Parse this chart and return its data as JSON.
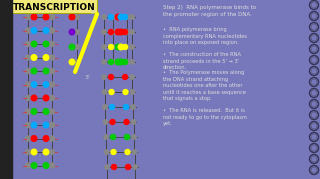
{
  "bg_color": "#7777bb",
  "dark_left": "#222222",
  "title_box_color": "#f0e878",
  "title_text": "TRANSCRIPTION",
  "title_text_color": "#000000",
  "text_color": "#dddddd",
  "step2_title": "Step 2)  RNA polymerase binds to\nthe promoter region of the DNA.",
  "bullet1": "  RNA polymerase bring\ncomplementary RNA nucleotides\ninto place on exposed region.",
  "bullet2": "  The construction of the RNA\nstrand proceeds in the 5’ → 3’\ndirection.",
  "bullet3": "  The Polymerase moves along\nthe DNA strand attaching\nnucleotides one after the other\nuntil it reaches a base sequence\nthat signals a stop.",
  "bullet4": "  The RNA is released.  But it is\nnot ready to go to the cytoplasm\nyet.",
  "left_dna_colors": [
    [
      "#ff0000",
      "#ff0000"
    ],
    [
      "#00aaff",
      "#00aaff"
    ],
    [
      "#00cc00",
      "#00cc00"
    ],
    [
      "#ffff00",
      "#ffff00"
    ],
    [
      "#00cc00",
      "#00cc00"
    ],
    [
      "#00aaff",
      "#00aaff"
    ],
    [
      "#ff0000",
      "#ff0000"
    ],
    [
      "#00cc00",
      "#00cc00"
    ],
    [
      "#00aaff",
      "#00aaff"
    ],
    [
      "#ff0000",
      "#ff0000"
    ],
    [
      "#ffff00",
      "#ffff00"
    ],
    [
      "#00cc00",
      "#00cc00"
    ]
  ],
  "open_left_colors": [
    "#ff0000",
    "#7700cc",
    "#00cc00",
    "#ffff00"
  ],
  "open_right_colors": [
    "#ff0000",
    "#ff0000",
    "#00cc00",
    "#00cc00"
  ],
  "rna_colors": [
    "#00aaff",
    "#ff0000",
    "#ffff00",
    "#00cc00"
  ],
  "right_dna_colors_top": [
    [
      "#00aaff",
      "#00aaff"
    ],
    [
      "#ff0000",
      "#ff0000"
    ],
    [
      "#ffff00",
      "#ffff00"
    ],
    [
      "#00cc00",
      "#00cc00"
    ]
  ],
  "right_dna_colors_bot": [
    [
      "#ff0000",
      "#ff0000"
    ],
    [
      "#ffff00",
      "#ffff00"
    ],
    [
      "#00aaff",
      "#00aaff"
    ],
    [
      "#ff0000",
      "#ff0000"
    ],
    [
      "#00cc00",
      "#00cc00"
    ],
    [
      "#ffff00",
      "#ffff00"
    ],
    [
      "#ff0000",
      "#ff0000"
    ],
    [
      "#00cc00",
      "#00cc00"
    ],
    [
      "#00aaff",
      "#00aaff"
    ],
    [
      "#ff0000",
      "#ff0000"
    ],
    [
      "#00cc00",
      "#00cc00"
    ],
    [
      "#ffff00",
      "#ffff00"
    ]
  ]
}
